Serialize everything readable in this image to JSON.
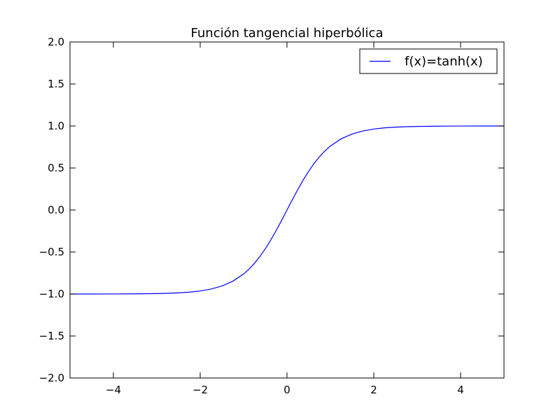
{
  "chart_data": {
    "type": "line",
    "title": "Función tangencial hiperbólica",
    "xlabel": "",
    "ylabel": "",
    "xlim": [
      -5,
      5
    ],
    "ylim": [
      -2,
      2
    ],
    "xticks": [
      -4,
      -2,
      0,
      2,
      4
    ],
    "xtick_labels": [
      "−4",
      "−2",
      "0",
      "2",
      "4"
    ],
    "yticks": [
      -2,
      -1.5,
      -1,
      -0.5,
      0,
      0.5,
      1,
      1.5,
      2
    ],
    "ytick_labels": [
      "−2.0",
      "−1.5",
      "−1.0",
      "−0.5",
      "0.0",
      "0.5",
      "1.0",
      "1.5",
      "2.0"
    ],
    "grid": false,
    "legend_position": "top-right",
    "series": [
      {
        "name": "f(x)=tanh(x)",
        "color": "#0000ff",
        "x": [
          -5,
          -4.5,
          -4,
          -3.5,
          -3,
          -2.75,
          -2.5,
          -2.25,
          -2,
          -1.75,
          -1.5,
          -1.25,
          -1,
          -0.875,
          -0.75,
          -0.625,
          -0.5,
          -0.375,
          -0.25,
          -0.125,
          0,
          0.125,
          0.25,
          0.375,
          0.5,
          0.625,
          0.75,
          0.875,
          1,
          1.25,
          1.5,
          1.75,
          2,
          2.25,
          2.5,
          2.75,
          3,
          3.5,
          4,
          4.5,
          5
        ],
        "y": [
          -0.9999,
          -0.9998,
          -0.9993,
          -0.9982,
          -0.9951,
          -0.9918,
          -0.9866,
          -0.978,
          -0.964,
          -0.9414,
          -0.9051,
          -0.8483,
          -0.7616,
          -0.704,
          -0.6351,
          -0.5546,
          -0.4621,
          -0.3584,
          -0.2449,
          -0.1244,
          0,
          0.1244,
          0.2449,
          0.3584,
          0.4621,
          0.5546,
          0.6351,
          0.704,
          0.7616,
          0.8483,
          0.9051,
          0.9414,
          0.964,
          0.978,
          0.9866,
          0.9918,
          0.9951,
          0.9982,
          0.9993,
          0.9998,
          0.9999
        ]
      }
    ]
  }
}
